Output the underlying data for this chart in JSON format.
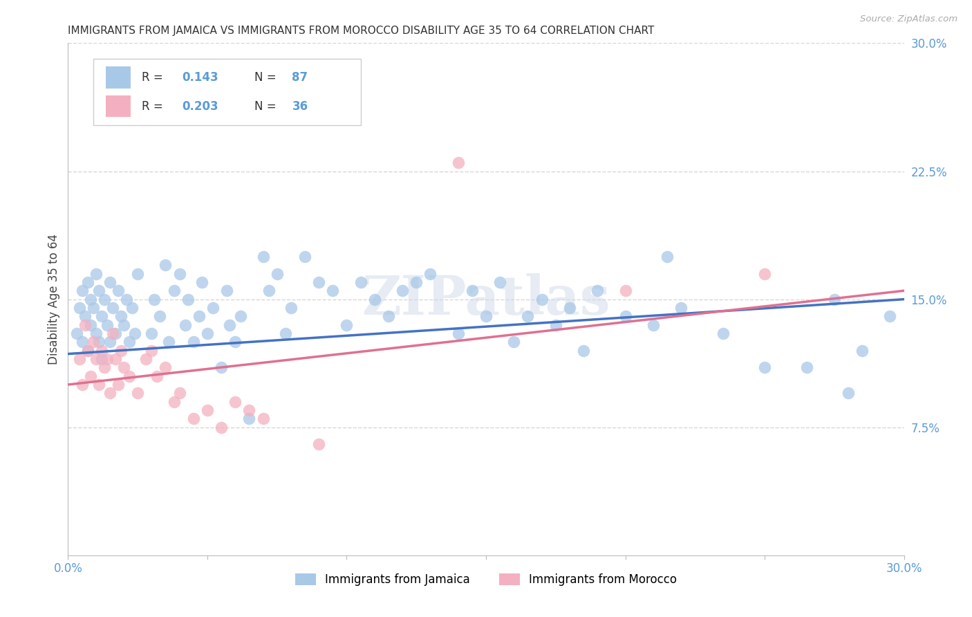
{
  "title": "IMMIGRANTS FROM JAMAICA VS IMMIGRANTS FROM MOROCCO DISABILITY AGE 35 TO 64 CORRELATION CHART",
  "source": "Source: ZipAtlas.com",
  "ylabel": "Disability Age 35 to 64",
  "xlim": [
    0.0,
    0.3
  ],
  "ylim": [
    0.0,
    0.3
  ],
  "jamaica_R": 0.143,
  "jamaica_N": 87,
  "morocco_R": 0.203,
  "morocco_N": 36,
  "jamaica_color": "#a8c8e8",
  "morocco_color": "#f4b0c0",
  "jamaica_line_color": "#4472c4",
  "morocco_line_color": "#e07090",
  "background_color": "#ffffff",
  "grid_color": "#cccccc",
  "title_color": "#333333",
  "label_color": "#5b9bd5",
  "watermark": "ZIPatlas",
  "jamaica_line_start_y": 0.118,
  "jamaica_line_end_y": 0.15,
  "morocco_line_start_y": 0.1,
  "morocco_line_end_y": 0.155
}
